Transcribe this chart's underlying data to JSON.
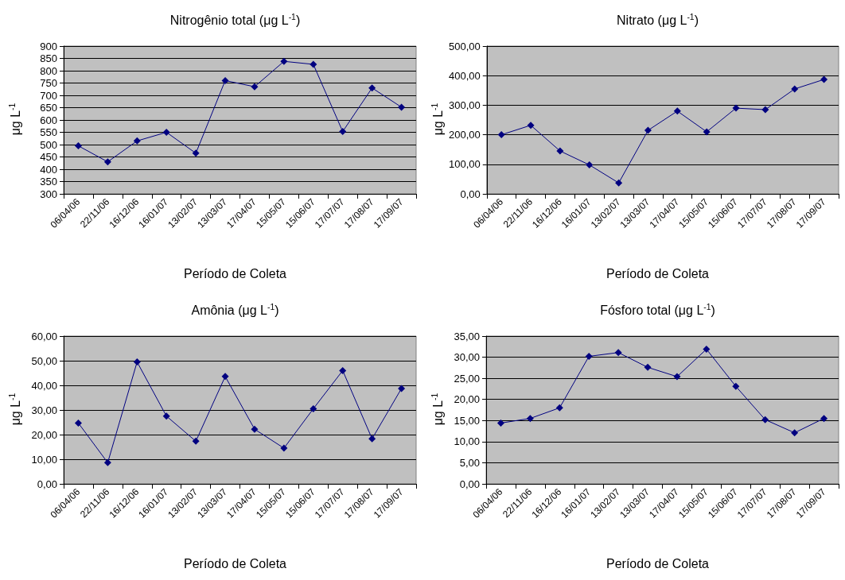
{
  "chart_data": [
    {
      "type": "line",
      "title": "Nitrogênio total (μg L$^{-1}$)",
      "xlabel": "Período de Coleta",
      "ylabel": "μg L$^{-1}$",
      "categories": [
        "06/04/06",
        "22/11/06",
        "16/12/06",
        "16/01/07",
        "13/02/07",
        "13/03/07",
        "17/04/07",
        "15/05/07",
        "15/06/07",
        "17/07/07",
        "17/08/07",
        "17/09/07"
      ],
      "series": [
        {
          "color": "#000080",
          "values": [
            495,
            430,
            515,
            550,
            465,
            760,
            735,
            838,
            826,
            553,
            730,
            652
          ]
        }
      ],
      "ylim": [
        300,
        900
      ],
      "yticks": [
        300,
        350,
        400,
        450,
        500,
        550,
        600,
        650,
        700,
        750,
        800,
        850,
        900
      ],
      "grid": "y",
      "marker": "diamond",
      "line_style": "solid"
    },
    {
      "type": "line",
      "title": "Nitrato (μg L$^{-1}$)",
      "xlabel": "Período de Coleta",
      "ylabel": "μg L$^{-1}$",
      "categories": [
        "06/04/06",
        "22/11/06",
        "16/12/06",
        "16/01/07",
        "13/02/07",
        "13/03/07",
        "17/04/07",
        "15/05/07",
        "15/06/07",
        "17/07/07",
        "17/08/07",
        "17/09/07"
      ],
      "series": [
        {
          "color": "#000080",
          "values": [
            200,
            232,
            145,
            98,
            37,
            215,
            280,
            210,
            290,
            285,
            355,
            387
          ]
        }
      ],
      "ylim": [
        0,
        500
      ],
      "yticks": [
        {
          "value": 0,
          "label": "0,00"
        },
        {
          "value": 100,
          "label": "100,00"
        },
        {
          "value": 200,
          "label": "200,00"
        },
        {
          "value": 300,
          "label": "300,00"
        },
        {
          "value": 400,
          "label": "400,00"
        },
        {
          "value": 500,
          "label": "500,00"
        }
      ],
      "grid": "y",
      "marker": "diamond",
      "line_style": "solid"
    },
    {
      "type": "line",
      "title": "Amônia (μg L$^{-1}$)",
      "xlabel": "Período de Coleta",
      "ylabel": "μg L$^{-1}$",
      "categories": [
        "06/04/06",
        "22/11/06",
        "16/12/06",
        "16/01/07",
        "13/02/07",
        "13/03/07",
        "17/04/07",
        "15/05/07",
        "15/06/07",
        "17/07/07",
        "17/08/07",
        "17/09/07"
      ],
      "series": [
        {
          "color": "#000080",
          "values": [
            24.7,
            8.6,
            49.5,
            27.5,
            17.3,
            43.6,
            22.2,
            14.5,
            30.5,
            46,
            18.3,
            38.7
          ]
        }
      ],
      "ylim": [
        0,
        60
      ],
      "yticks": [
        {
          "value": 0,
          "label": "0,00"
        },
        {
          "value": 10,
          "label": "10,00"
        },
        {
          "value": 20,
          "label": "20,00"
        },
        {
          "value": 30,
          "label": "30,00"
        },
        {
          "value": 40,
          "label": "40,00"
        },
        {
          "value": 50,
          "label": "50,00"
        },
        {
          "value": 60,
          "label": "60,00"
        }
      ],
      "grid": "y",
      "marker": "diamond",
      "line_style": "solid"
    },
    {
      "type": "line",
      "title": "Fósforo total (μg L$^{-1}$)",
      "xlabel": "Período de Coleta",
      "ylabel": "μg L$^{-1}$",
      "categories": [
        "06/04/06",
        "22/11/06",
        "16/12/06",
        "16/01/07",
        "13/02/07",
        "13/03/07",
        "17/04/07",
        "15/05/07",
        "15/06/07",
        "17/07/07",
        "17/08/07",
        "17/09/07"
      ],
      "series": [
        {
          "color": "#000080",
          "values": [
            14.4,
            15.5,
            18,
            30.2,
            31.1,
            27.6,
            25.4,
            31.9,
            23.1,
            15.2,
            12.1,
            15.5
          ]
        }
      ],
      "ylim": [
        0,
        35
      ],
      "yticks": [
        {
          "value": 0,
          "label": "0,00"
        },
        {
          "value": 5,
          "label": "5,00"
        },
        {
          "value": 10,
          "label": "10,00"
        },
        {
          "value": 15,
          "label": "15,00"
        },
        {
          "value": 20,
          "label": "20,00"
        },
        {
          "value": 25,
          "label": "25,00"
        },
        {
          "value": 30,
          "label": "30,00"
        },
        {
          "value": 35,
          "label": "35,00"
        }
      ],
      "grid": "y",
      "marker": "diamond",
      "line_style": "solid"
    }
  ]
}
